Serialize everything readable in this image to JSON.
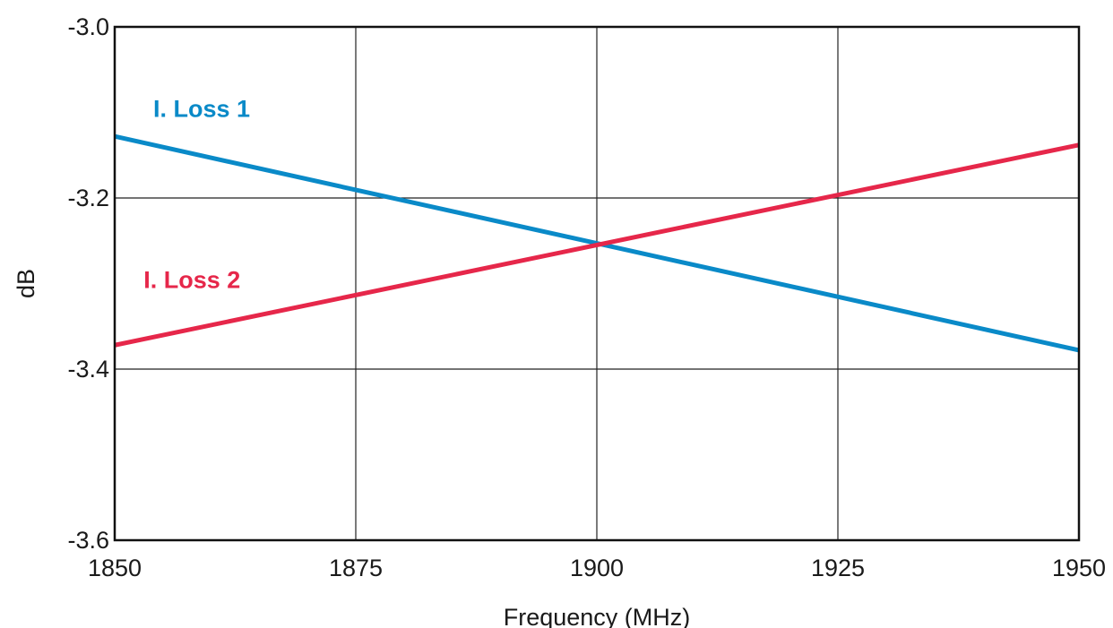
{
  "chart_data": {
    "type": "line",
    "title": "",
    "xlabel": "Frequency (MHz)",
    "ylabel": "dB",
    "xlim": [
      1850,
      1950
    ],
    "ylim": [
      -3.6,
      -3.0
    ],
    "x_ticks": [
      1850,
      1875,
      1900,
      1925,
      1950
    ],
    "x_tick_labels": [
      "1850",
      "1875",
      "1900",
      "1925",
      "1950"
    ],
    "y_ticks": [
      -3.0,
      -3.2,
      -3.4,
      -3.6
    ],
    "y_tick_labels": [
      "-3.0",
      "-3.2",
      "-3.4",
      "-3.6"
    ],
    "grid": true,
    "series": [
      {
        "name": "I. Loss 1",
        "color": "#0a8ac8",
        "x": [
          1850,
          1950
        ],
        "y": [
          -3.128,
          -3.378
        ]
      },
      {
        "name": "I. Loss 2",
        "color": "#e6274a",
        "x": [
          1850,
          1950
        ],
        "y": [
          -3.372,
          -3.138
        ]
      }
    ],
    "annotations": [
      {
        "text": "I. Loss 1",
        "series": 0,
        "x": 1854,
        "y": -3.105
      },
      {
        "text": "I. Loss 2",
        "series": 1,
        "x": 1853,
        "y": -3.305
      }
    ]
  }
}
